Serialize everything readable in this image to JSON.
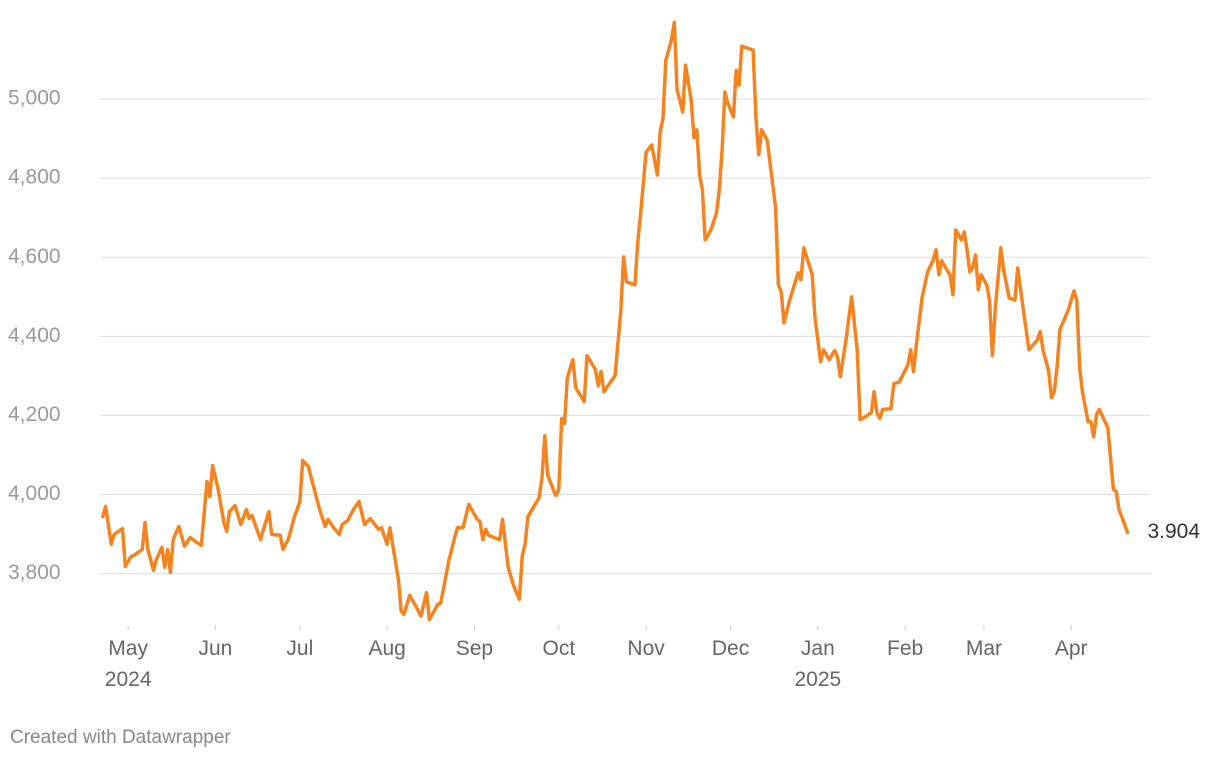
{
  "chart_data": {
    "type": "line",
    "x": [
      -9,
      -8,
      -6,
      -5,
      -2,
      -1,
      1,
      2,
      5,
      6,
      7,
      9,
      10,
      12,
      13,
      14,
      15,
      16,
      18,
      20,
      22,
      26,
      28,
      29,
      30,
      32,
      34,
      35,
      36,
      38,
      40,
      42,
      43,
      44,
      47,
      50,
      51,
      54,
      55,
      57,
      59,
      61,
      62,
      64,
      68,
      70,
      71,
      73,
      75,
      76,
      78,
      80,
      82,
      84,
      86,
      89,
      90,
      92,
      93,
      96,
      97,
      98,
      100,
      103,
      104,
      106,
      107,
      110,
      111,
      112,
      114,
      116,
      117,
      119,
      121,
      124,
      125,
      126,
      127,
      128,
      130,
      132,
      133,
      135,
      137,
      139,
      140,
      141,
      142,
      146,
      147,
      148,
      149,
      151,
      152,
      153,
      154,
      155,
      156,
      158,
      159,
      162,
      163,
      166,
      167,
      168,
      169,
      173,
      175,
      176,
      177,
      180,
      181,
      182,
      184,
      186,
      188,
      189,
      190,
      191,
      193,
      194,
      195,
      196,
      197,
      198,
      200,
      201,
      202,
      203,
      204,
      205,
      207,
      209,
      210,
      211,
      212,
      213,
      215,
      216,
      217,
      218,
      222,
      223,
      224,
      225,
      227,
      229,
      230,
      231,
      232,
      233,
      235,
      237,
      238,
      239,
      240,
      243,
      244,
      246,
      247,
      249,
      251,
      252,
      253,
      255,
      257,
      259,
      260,
      262,
      264,
      265,
      266,
      267,
      268,
      271,
      272,
      274,
      277,
      278,
      279,
      280,
      282,
      284,
      286,
      287,
      288,
      289,
      291,
      292,
      293,
      294,
      296,
      297,
      298,
      299,
      300,
      301,
      302,
      303,
      305,
      306,
      307,
      308,
      310,
      311,
      313,
      315,
      316,
      318,
      320,
      323,
      324,
      325,
      327,
      328,
      329,
      330,
      331,
      334,
      336,
      337,
      338,
      339,
      341,
      342,
      343,
      344,
      345,
      348,
      350,
      351,
      352,
      354,
      355
    ],
    "series": [
      {
        "color": "#f5831f",
        "values": [
          3944,
          3970,
          3874,
          3899,
          3914,
          3818,
          3843,
          3846,
          3861,
          3929,
          3861,
          3808,
          3836,
          3866,
          3816,
          3861,
          3803,
          3886,
          3919,
          3869,
          3891,
          3871,
          4033,
          3995,
          4073,
          4013,
          3929,
          3907,
          3957,
          3972,
          3924,
          3962,
          3939,
          3947,
          3886,
          3957,
          3899,
          3897,
          3861,
          3889,
          3942,
          3982,
          4086,
          4071,
          3962,
          3919,
          3937,
          3916,
          3899,
          3924,
          3934,
          3962,
          3982,
          3924,
          3939,
          3912,
          3916,
          3874,
          3916,
          3785,
          3705,
          3697,
          3745,
          3707,
          3692,
          3752,
          3684,
          3722,
          3725,
          3760,
          3836,
          3891,
          3916,
          3916,
          3975,
          3937,
          3932,
          3886,
          3912,
          3897,
          3891,
          3886,
          3937,
          3816,
          3768,
          3735,
          3846,
          3874,
          3944,
          3992,
          4043,
          4149,
          4050,
          4013,
          3997,
          4013,
          4192,
          4179,
          4295,
          4341,
          4270,
          4235,
          4351,
          4316,
          4275,
          4311,
          4260,
          4301,
          4465,
          4601,
          4538,
          4530,
          4636,
          4707,
          4866,
          4884,
          4808,
          4917,
          4952,
          5098,
          5149,
          5194,
          5022,
          4997,
          4967,
          5086,
          4997,
          4902,
          4922,
          4808,
          4770,
          4644,
          4669,
          4712,
          4770,
          4871,
          5018,
          4990,
          4955,
          5073,
          5035,
          5134,
          5124,
          4955,
          4859,
          4922,
          4896,
          4783,
          4725,
          4530,
          4513,
          4434,
          4492,
          4538,
          4561,
          4543,
          4624,
          4556,
          4447,
          4336,
          4366,
          4341,
          4364,
          4348,
          4298,
          4391,
          4500,
          4366,
          4189,
          4197,
          4207,
          4260,
          4207,
          4192,
          4215,
          4217,
          4280,
          4285,
          4328,
          4366,
          4311,
          4379,
          4497,
          4563,
          4593,
          4619,
          4556,
          4591,
          4566,
          4556,
          4505,
          4669,
          4644,
          4664,
          4619,
          4563,
          4573,
          4606,
          4518,
          4556,
          4530,
          4492,
          4351,
          4467,
          4624,
          4568,
          4497,
          4492,
          4573,
          4467,
          4366,
          4391,
          4412,
          4366,
          4311,
          4245,
          4260,
          4323,
          4417,
          4467,
          4515,
          4492,
          4323,
          4260,
          4184,
          4184,
          4146,
          4202,
          4215,
          4169,
          4013,
          4008,
          3962,
          3924,
          3904
        ]
      }
    ],
    "last_value_label": "3.904",
    "xlim": [
      -10,
      363
    ],
    "xticks": [
      {
        "value": 0,
        "label": "May\n2024"
      },
      {
        "value": 31,
        "label": "Jun"
      },
      {
        "value": 61,
        "label": "Jul"
      },
      {
        "value": 92,
        "label": "Aug"
      },
      {
        "value": 123,
        "label": "Sep"
      },
      {
        "value": 153,
        "label": "Oct"
      },
      {
        "value": 184,
        "label": "Nov"
      },
      {
        "value": 214,
        "label": "Dec"
      },
      {
        "value": 245,
        "label": "Jan\n2025"
      },
      {
        "value": 276,
        "label": "Feb"
      },
      {
        "value": 304,
        "label": "Mar"
      },
      {
        "value": 335,
        "label": "Apr"
      }
    ],
    "ylim": [
      3670,
      5200
    ],
    "yticks": [
      {
        "value": 3800,
        "label": "3,800"
      },
      {
        "value": 4000,
        "label": "4,000"
      },
      {
        "value": 4200,
        "label": "4,200"
      },
      {
        "value": 4400,
        "label": "4,400"
      },
      {
        "value": 4600,
        "label": "4,600"
      },
      {
        "value": 4800,
        "label": "4,800"
      },
      {
        "value": 5000,
        "label": "5,000"
      }
    ],
    "grid": true,
    "footer": "Created with Datawrapper"
  }
}
